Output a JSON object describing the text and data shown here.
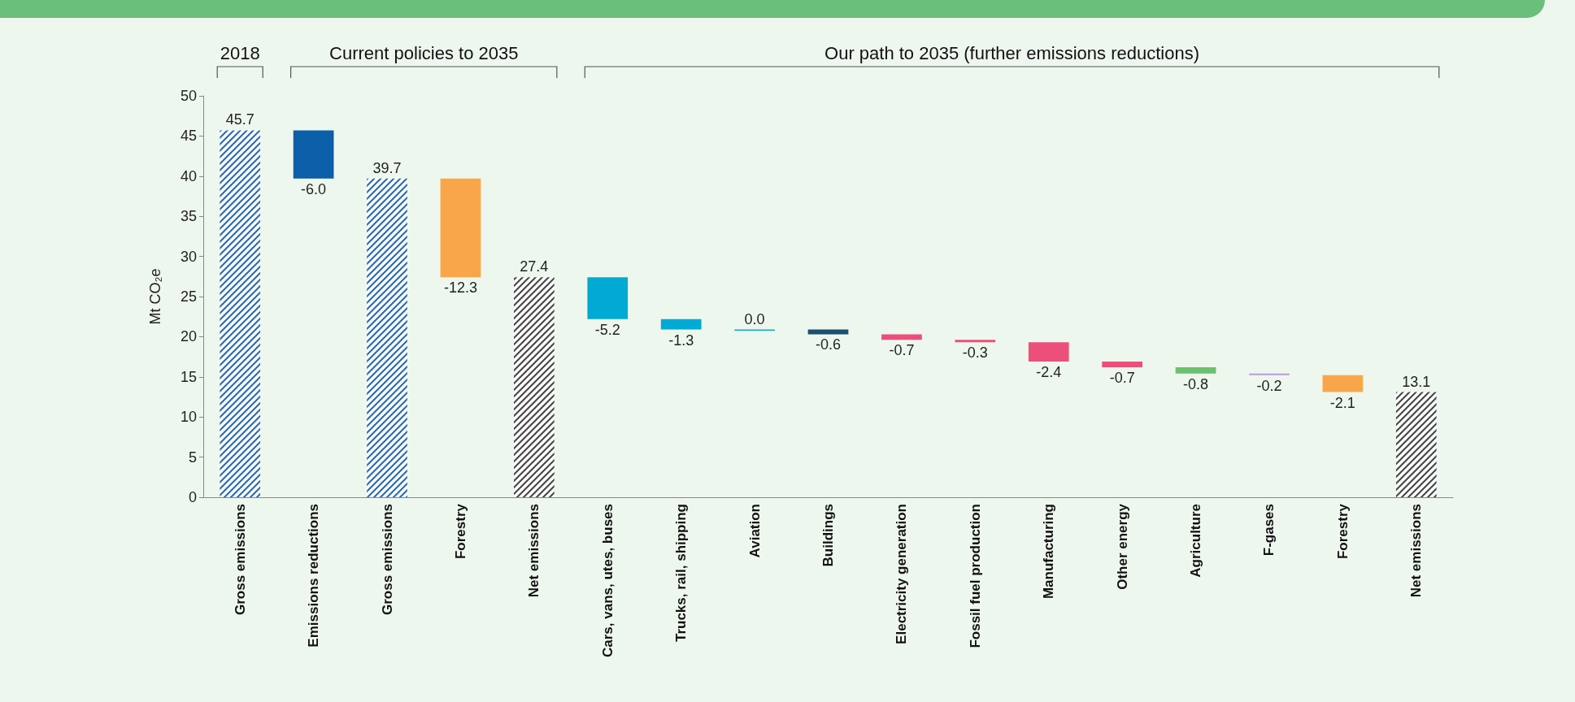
{
  "chart_data": {
    "type": "bar",
    "ylabel": "Mt CO₂e",
    "categories": [
      "Gross emissions",
      "Emissions reductions",
      "Gross emissions",
      "Forestry",
      "Net emissions",
      "Cars, vans, utes, buses",
      "Trucks, rail, shipping",
      "Aviation",
      "Buildings",
      "Electricity generation",
      "Fossil fuel production",
      "Manufacturing",
      "Other energy",
      "Agriculture",
      "F-gases",
      "Forestry",
      "Net emissions"
    ],
    "values": [
      45.7,
      -6.0,
      39.7,
      -12.3,
      27.4,
      -5.2,
      -1.3,
      0.0,
      -0.6,
      -0.7,
      -0.3,
      -2.4,
      -0.7,
      -0.8,
      -0.2,
      -2.1,
      13.1
    ],
    "base": [
      0,
      45.7,
      0,
      39.7,
      0,
      27.4,
      22.2,
      20.9,
      20.9,
      20.3,
      19.6,
      19.3,
      16.9,
      16.2,
      15.4,
      15.2,
      0
    ],
    "value_labels": [
      "45.7",
      "-6.0",
      "39.7",
      "-12.3",
      "27.4",
      "-5.2",
      "-1.3",
      "0.0",
      "-0.6",
      "-0.7",
      "-0.3",
      "-2.4",
      "-0.7",
      "-0.8",
      "-0.2",
      "-2.1",
      "13.1"
    ],
    "colors": [
      "#2e6db4",
      "#0b5ea8",
      "#2e6db4",
      "#f9a64a",
      "#4a4a4a",
      "#00aad4",
      "#00aad4",
      "#00aad4",
      "#1c4f72",
      "#ec4f7a",
      "#ec4f7a",
      "#ec4f7a",
      "#ec4f7a",
      "#6cc070",
      "#b39ddb",
      "#f9a64a",
      "#4a4a4a"
    ],
    "ylim": [
      0,
      50
    ],
    "yticks": [
      0,
      5,
      10,
      15,
      20,
      25,
      30,
      35,
      40,
      45,
      50
    ],
    "grid": false,
    "annotations": [
      "2018",
      "Current policies to 2035",
      "Our path to 2035 (further emissions reductions)"
    ]
  }
}
